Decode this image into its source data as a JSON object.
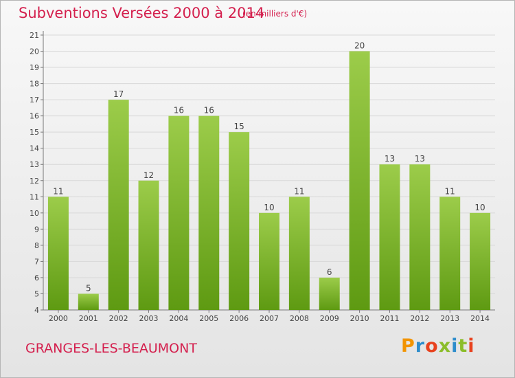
{
  "header": {
    "title": "Subventions Versées 2000 à 2014",
    "subtitle": "(en milliers d'€)"
  },
  "footer": {
    "commune": "GRANGES-LES-BEAUMONT",
    "logo": "Proxiti"
  },
  "colors": {
    "bar_light": "#9ccc4a",
    "bar_dark": "#5e9a12",
    "title": "#d4204e",
    "axis": "#777777",
    "grid": "#d8d8d8",
    "logo_letters": [
      "#f29400",
      "#2e8dcc",
      "#e8421e",
      "#8bbd2a",
      "#2e8dcc",
      "#8bbd2a",
      "#e8421e"
    ]
  },
  "chart_data": {
    "type": "bar",
    "categories": [
      "2000",
      "2001",
      "2002",
      "2003",
      "2004",
      "2005",
      "2006",
      "2007",
      "2008",
      "2009",
      "2010",
      "2011",
      "2012",
      "2013",
      "2014"
    ],
    "values": [
      11,
      5,
      17,
      12,
      16,
      16,
      15,
      10,
      11,
      6,
      20,
      13,
      13,
      11,
      10
    ],
    "ylim": [
      4,
      21
    ],
    "yticks": [
      4,
      5,
      6,
      7,
      8,
      9,
      10,
      11,
      12,
      13,
      14,
      15,
      16,
      17,
      18,
      19,
      20,
      21
    ],
    "grid": true,
    "data_labels": true
  }
}
